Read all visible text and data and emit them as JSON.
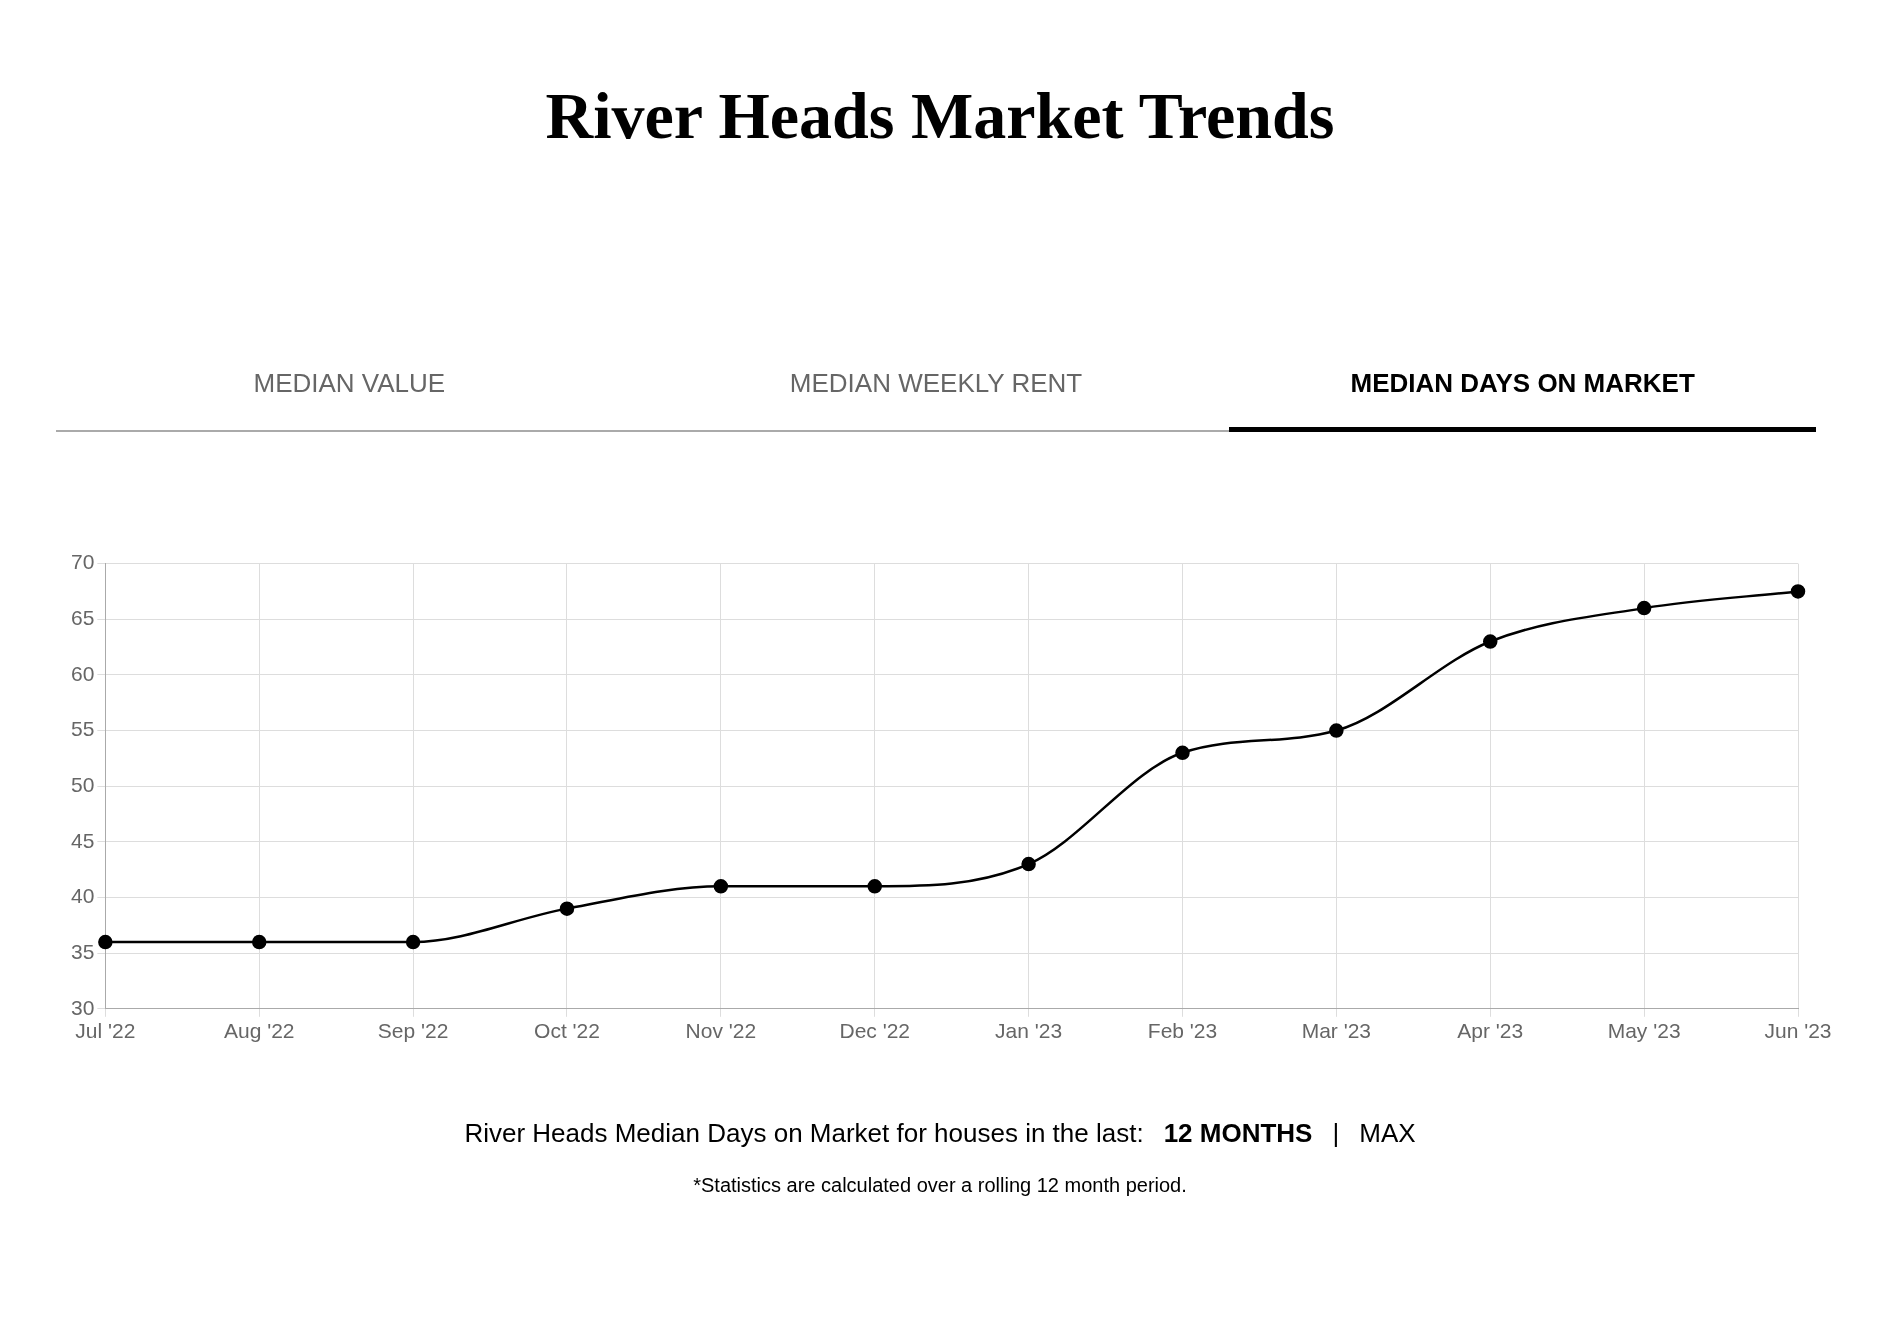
{
  "chart_data": {
    "type": "line",
    "title": "River Heads Market Trends",
    "categories": [
      "Jul '22",
      "Aug '22",
      "Sep '22",
      "Oct '22",
      "Nov '22",
      "Dec '22",
      "Jan '23",
      "Feb '23",
      "Mar '23",
      "Apr '23",
      "May '23",
      "Jun '23"
    ],
    "series": [
      {
        "color": "#000000",
        "values": [
          36,
          36,
          36,
          39,
          41,
          41,
          43,
          53,
          55,
          63,
          66,
          67.5
        ]
      }
    ],
    "ylim": [
      30,
      70
    ],
    "yticks": [
      30,
      35,
      40,
      45,
      50,
      55,
      60,
      65,
      70
    ],
    "grid": true,
    "legend": false,
    "marker": "circle",
    "line_style": "solid",
    "annotations": [
      "MEDIAN VALUE",
      "MEDIAN WEEKLY RENT",
      "MEDIAN DAYS ON MARKET",
      "River Heads Median Days on Market for houses in the last:",
      "12 MONTHS",
      "|",
      "MAX",
      "*Statistics are calculated over a rolling 12 month period."
    ]
  }
}
